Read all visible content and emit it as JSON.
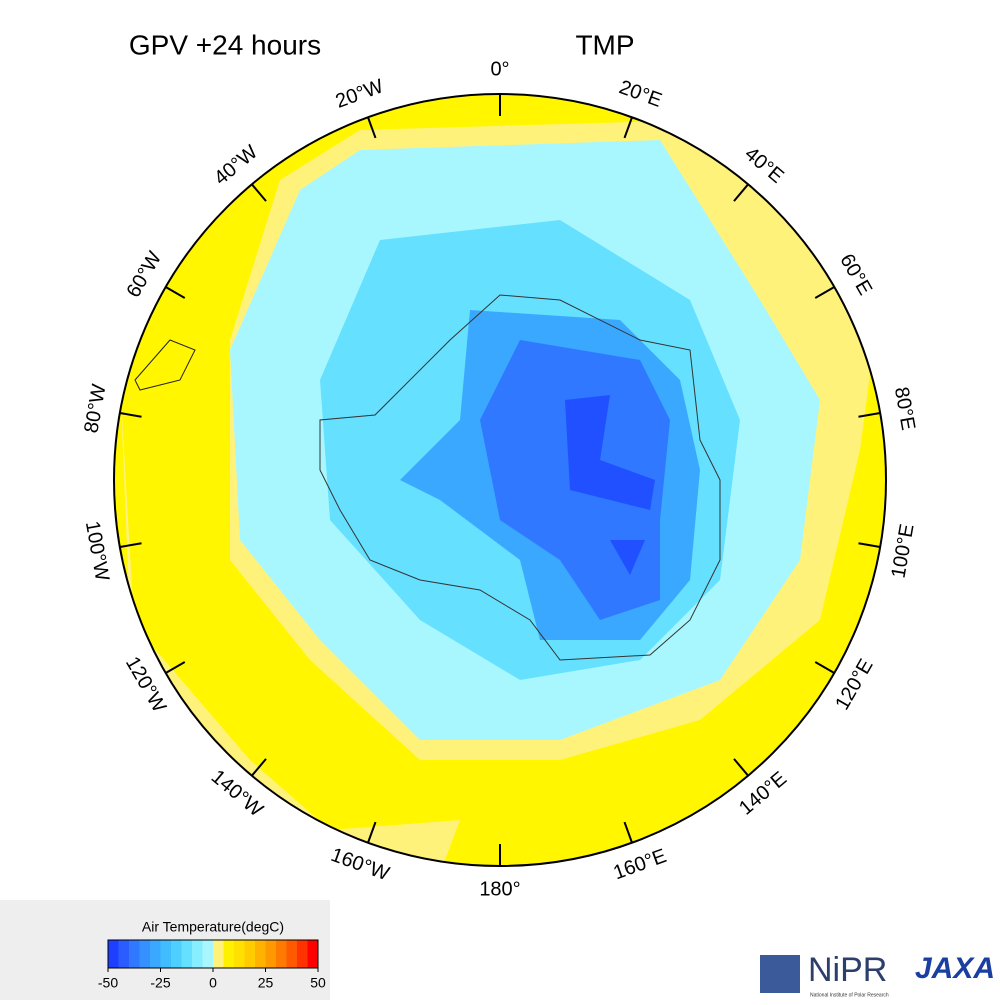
{
  "header": {
    "title": "GPV +24 hours",
    "variable": "TMP"
  },
  "map": {
    "longitude_labels": [
      "0°",
      "20°E",
      "40°E",
      "60°E",
      "80°E",
      "100°E",
      "120°E",
      "140°E",
      "160°E",
      "180°",
      "160°W",
      "140°W",
      "120°W",
      "100°W",
      "80°W",
      "60°W",
      "40°W",
      "20°W"
    ]
  },
  "colorbar": {
    "title": "Air Temperature(degC)",
    "range": [
      -50,
      50
    ],
    "ticks": [
      -50,
      -25,
      0,
      25,
      50
    ],
    "colors": [
      "#1f3fff",
      "#2a5cff",
      "#2f78ff",
      "#3591ff",
      "#3aa8ff",
      "#40bcff",
      "#4dd0ff",
      "#66e0ff",
      "#86eeff",
      "#a8f7ff",
      "#fff27a",
      "#fff000",
      "#ffe000",
      "#ffcc00",
      "#ffb300",
      "#ff9900",
      "#ff7a00",
      "#ff5a00",
      "#ff3300",
      "#ff0000"
    ]
  },
  "logos": {
    "nipr": "NiPR",
    "nipr_sub": "National Institute of Polar Research",
    "jaxa": "JAXA"
  }
}
